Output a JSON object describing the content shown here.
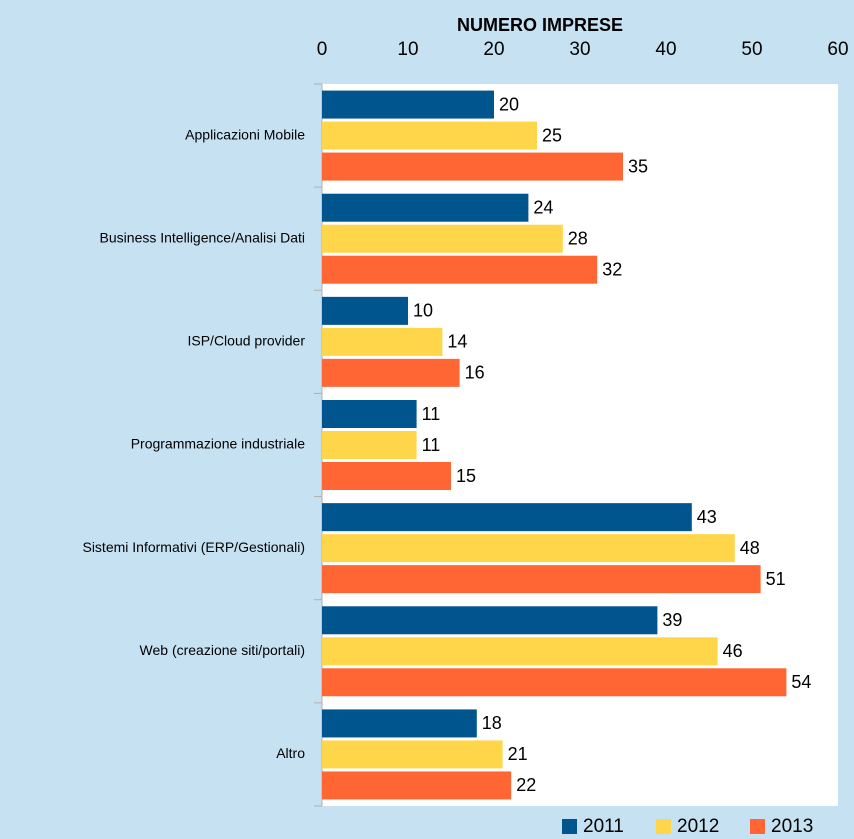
{
  "chart_data": {
    "type": "bar",
    "orientation": "horizontal",
    "x_axis_title": "NUMERO IMPRESE",
    "categories": [
      "Applicazioni Mobile",
      "Business Intelligence/Analisi Dati",
      "ISP/Cloud provider",
      "Programmazione industriale",
      "Sistemi Informativi (ERP/Gestionali)",
      "Web (creazione siti/portali)",
      "Altro"
    ],
    "series": [
      {
        "name": "2011",
        "color": "#00558f",
        "values": [
          20,
          24,
          10,
          11,
          43,
          39,
          18
        ]
      },
      {
        "name": "2012",
        "color": "#ffd54a",
        "values": [
          25,
          28,
          14,
          11,
          48,
          46,
          21
        ]
      },
      {
        "name": "2013",
        "color": "#ff6633",
        "values": [
          35,
          32,
          16,
          15,
          51,
          54,
          22
        ]
      }
    ],
    "xlim": [
      0,
      60
    ],
    "xticks": [
      0,
      10,
      20,
      30,
      40,
      50,
      60
    ],
    "grid": false,
    "legend": "bottom-right"
  }
}
